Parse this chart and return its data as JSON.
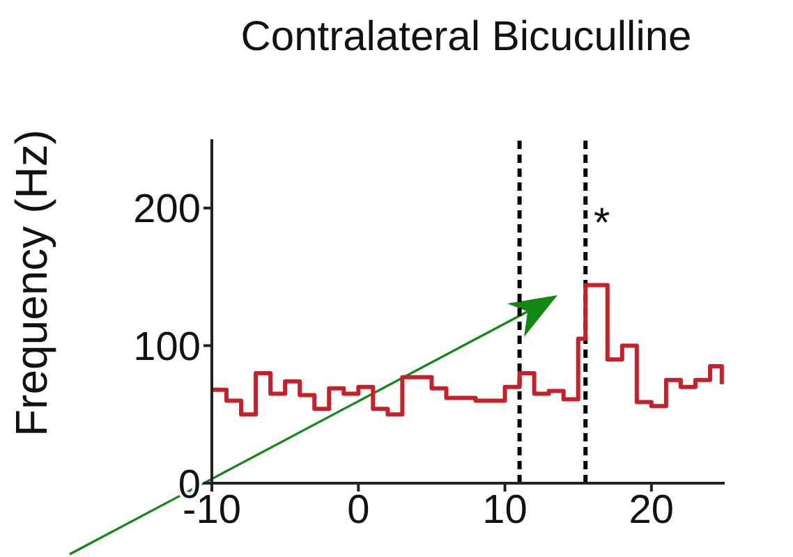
{
  "chart_data": {
    "type": "step",
    "title": "Contralateral Bicuculline",
    "ylabel": "Frequency (Hz)",
    "x": [
      -10,
      -9,
      -8,
      -7,
      -6,
      -5,
      -4,
      -3,
      -2,
      -1,
      0,
      1,
      2,
      3,
      5,
      6,
      8,
      10,
      11,
      12,
      13,
      14,
      15,
      15.5,
      17,
      18,
      19,
      20,
      21,
      22,
      23,
      24,
      24.8
    ],
    "series": [
      {
        "color": "#c8202a",
        "values": [
          68,
          60,
          50,
          80,
          65,
          74,
          64,
          54,
          69,
          65,
          70,
          54,
          50,
          77,
          69,
          62,
          60,
          70,
          80,
          65,
          67,
          61,
          105,
          144,
          90,
          100,
          59,
          56,
          75,
          70,
          75,
          85,
          72
        ]
      }
    ],
    "xlim": [
      -10,
      25
    ],
    "xticks": [
      -10,
      0,
      10,
      20
    ],
    "ylim": [
      0,
      250
    ],
    "yticks": [
      0,
      100,
      200
    ],
    "ref_lines": [
      {
        "axis": "x",
        "value": 11,
        "color": "#000000",
        "line_style": "dashed"
      },
      {
        "axis": "x",
        "value": 15.5,
        "color": "#000000",
        "line_style": "dashed"
      }
    ],
    "annotations": [
      "*"
    ],
    "grid": false,
    "legend": false
  }
}
